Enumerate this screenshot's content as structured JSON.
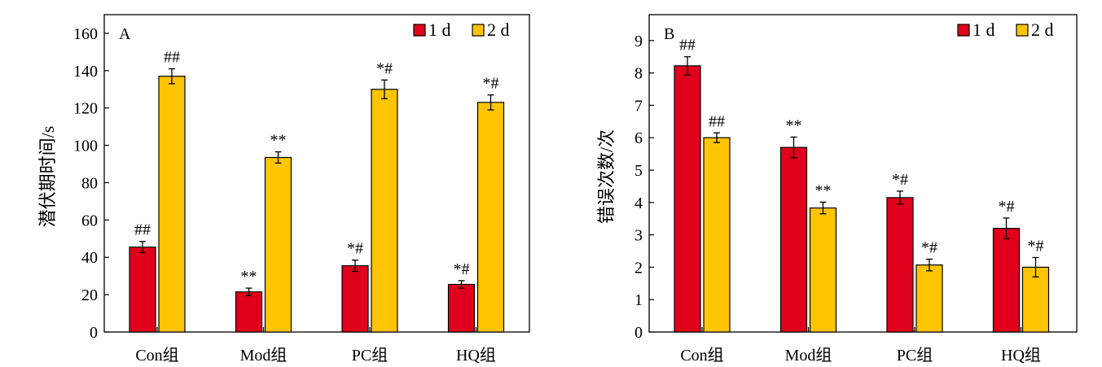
{
  "colors": {
    "day1": "#e0001b",
    "day2": "#ffc400",
    "axis": "#000000"
  },
  "chart_data": [
    {
      "type": "bar",
      "panel_label": "A",
      "ylabel": "潜伏期时间/s",
      "ylim": [
        0,
        170
      ],
      "yticks": [
        0,
        20,
        40,
        60,
        80,
        100,
        120,
        140,
        160
      ],
      "categories": [
        "Con组",
        "Mod组",
        "PC组",
        "HQ组"
      ],
      "legend_position": "top-right",
      "series": [
        {
          "name": "1 d",
          "values": [
            45.5,
            21.5,
            35.5,
            25.5
          ],
          "errors": [
            3,
            2,
            3,
            2
          ],
          "labels": [
            "##",
            "**",
            "*#",
            "*#"
          ]
        },
        {
          "name": "2 d",
          "values": [
            137,
            93.5,
            130,
            123
          ],
          "errors": [
            4,
            3,
            5,
            4
          ],
          "labels": [
            "##",
            "**",
            "*#",
            "*#"
          ]
        }
      ]
    },
    {
      "type": "bar",
      "panel_label": "B",
      "ylabel": "错误次数/次",
      "ylim": [
        0,
        9.8
      ],
      "yticks": [
        0,
        1,
        2,
        3,
        4,
        5,
        6,
        7,
        8,
        9
      ],
      "categories": [
        "Con组",
        "Mod组",
        "PC组",
        "HQ组"
      ],
      "legend_position": "top-right",
      "series": [
        {
          "name": "1 d",
          "values": [
            8.22,
            5.7,
            4.15,
            3.2
          ],
          "errors": [
            0.28,
            0.32,
            0.2,
            0.32
          ],
          "labels": [
            "##",
            "**",
            "*#",
            "*#"
          ]
        },
        {
          "name": "2 d",
          "values": [
            6.0,
            3.83,
            2.07,
            2.0
          ],
          "errors": [
            0.15,
            0.18,
            0.18,
            0.3
          ],
          "labels": [
            "##",
            "**",
            "*#",
            "*#"
          ]
        }
      ]
    }
  ]
}
